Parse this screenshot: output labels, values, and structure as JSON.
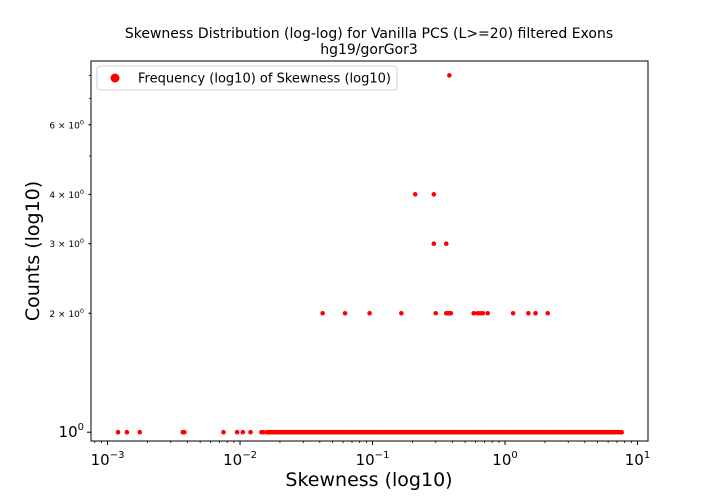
{
  "chart_data": {
    "type": "scatter",
    "title": "Skewness Distribution (log-log) for Vanilla PCS (L>=20) filtered Exons",
    "subtitle": "hg19/gorGor3",
    "xlabel": "Skewness (log10)",
    "ylabel": "Counts (log10)",
    "xscale": "log",
    "yscale": "log",
    "xlim": [
      0.00075,
      12
    ],
    "ylim": [
      0.95,
      8.7
    ],
    "grid": false,
    "legend_position": "top-left",
    "marker_color": "#ff0000",
    "xtick_labels": [
      {
        "base": "10",
        "exp": "−3",
        "value": 0.001
      },
      {
        "base": "10",
        "exp": "−2",
        "value": 0.01
      },
      {
        "base": "10",
        "exp": "−1",
        "value": 0.1
      },
      {
        "base": "10",
        "exp": "0",
        "value": 1
      },
      {
        "base": "10",
        "exp": "1",
        "value": 10
      }
    ],
    "ytick_labels": [
      {
        "mant": "",
        "base": "10",
        "exp": "0",
        "value": 1,
        "size": "big"
      },
      {
        "mant": "2 × ",
        "base": "10",
        "exp": "0",
        "value": 2,
        "size": "small"
      },
      {
        "mant": "3 × ",
        "base": "10",
        "exp": "0",
        "value": 3,
        "size": "small"
      },
      {
        "mant": "4 × ",
        "base": "10",
        "exp": "0",
        "value": 4,
        "size": "small"
      },
      {
        "mant": "6 × ",
        "base": "10",
        "exp": "0",
        "value": 6,
        "size": "small"
      }
    ],
    "series": [
      {
        "name": "Frequency (log10) of Skewness (log10)",
        "points_count1_sparse_x": [
          0.0012,
          0.0014,
          0.00175,
          0.0037,
          0.0038,
          0.0075,
          0.0095,
          0.0105,
          0.012,
          0.0145,
          0.015,
          0.016
        ],
        "points_count1_dense_x_range": [
          0.016,
          7.6
        ],
        "points": [
          {
            "x": 0.042,
            "y": 2
          },
          {
            "x": 0.062,
            "y": 2
          },
          {
            "x": 0.095,
            "y": 2
          },
          {
            "x": 0.165,
            "y": 2
          },
          {
            "x": 0.3,
            "y": 2
          },
          {
            "x": 0.36,
            "y": 2
          },
          {
            "x": 0.37,
            "y": 2
          },
          {
            "x": 0.38,
            "y": 2
          },
          {
            "x": 0.39,
            "y": 2
          },
          {
            "x": 0.58,
            "y": 2
          },
          {
            "x": 0.62,
            "y": 2
          },
          {
            "x": 0.65,
            "y": 2
          },
          {
            "x": 0.68,
            "y": 2
          },
          {
            "x": 0.74,
            "y": 2
          },
          {
            "x": 1.15,
            "y": 2
          },
          {
            "x": 1.5,
            "y": 2
          },
          {
            "x": 1.7,
            "y": 2
          },
          {
            "x": 2.1,
            "y": 2
          },
          {
            "x": 0.29,
            "y": 3
          },
          {
            "x": 0.36,
            "y": 3
          },
          {
            "x": 0.21,
            "y": 4
          },
          {
            "x": 0.29,
            "y": 4
          },
          {
            "x": 0.38,
            "y": 8
          }
        ]
      }
    ]
  }
}
